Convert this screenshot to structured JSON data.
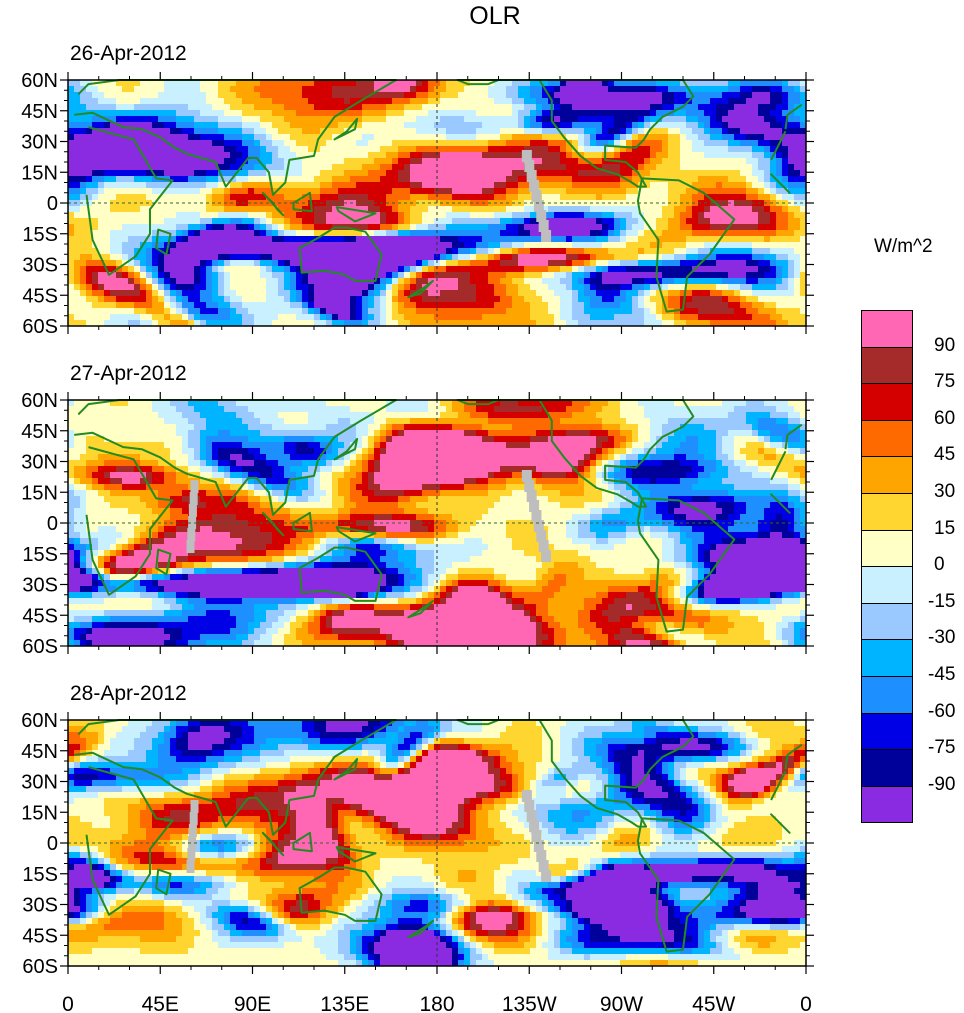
{
  "chart_data": {
    "type": "heatmap",
    "title": "OLR",
    "units_label": "W/m^2",
    "panels": [
      {
        "date": "26-Apr-2012",
        "seed": 11
      },
      {
        "date": "27-Apr-2012",
        "seed": 27
      },
      {
        "date": "28-Apr-2012",
        "seed": 43
      }
    ],
    "x_ticks": [
      "0",
      "45E",
      "90E",
      "135E",
      "180",
      "135W",
      "90W",
      "45W",
      "0"
    ],
    "x_tick_values": [
      0,
      45,
      90,
      135,
      180,
      225,
      270,
      315,
      360
    ],
    "y_ticks": [
      "60N",
      "45N",
      "30N",
      "15N",
      "0",
      "15S",
      "30S",
      "45S",
      "60S"
    ],
    "y_tick_values": [
      60,
      45,
      30,
      15,
      0,
      -15,
      -30,
      -45,
      -60
    ],
    "xlim": [
      0,
      360
    ],
    "ylim": [
      -60,
      60
    ],
    "colorbar": {
      "labels": [
        "90",
        "75",
        "60",
        "45",
        "30",
        "15",
        "0",
        "-15",
        "-30",
        "-45",
        "-60",
        "-75",
        "-90"
      ],
      "colors": [
        "#ff66b3",
        "#a52a2a",
        "#d40000",
        "#ff6a00",
        "#ffa500",
        "#ffd630",
        "#ffffc6",
        "#c8f0ff",
        "#99c9ff",
        "#00b4ff",
        "#1e8fff",
        "#0000e6",
        "#00009a",
        "#8a2be2"
      ]
    },
    "missing_color": "#bebebe",
    "coast_color": "#228b22"
  }
}
